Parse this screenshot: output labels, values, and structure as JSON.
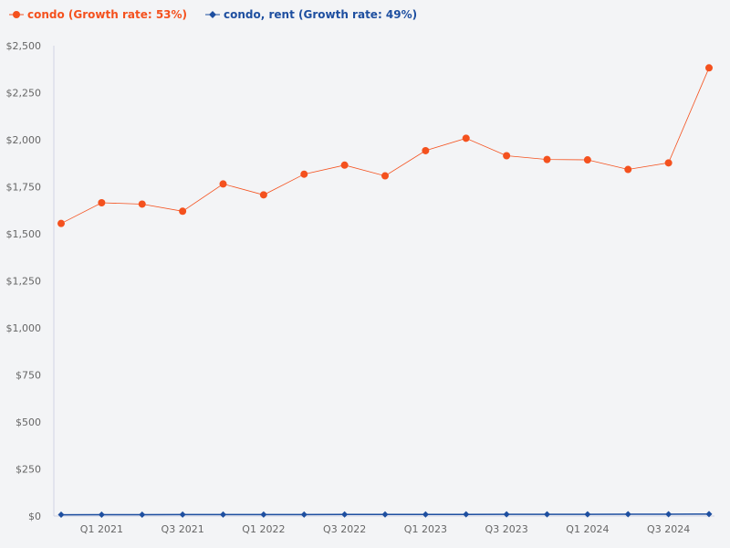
{
  "legend": [
    {
      "label": "condo (Growth rate: 53%)",
      "color": "#f4511e",
      "marker": "circle"
    },
    {
      "label": "condo, rent (Growth rate: 49%)",
      "color": "#1e4fa0",
      "marker": "diamond"
    }
  ],
  "chart_data": {
    "type": "line",
    "title": "",
    "xlabel": "",
    "ylabel": "",
    "x": [
      "Q4 2020",
      "Q1 2021",
      "Q2 2021",
      "Q3 2021",
      "Q4 2021",
      "Q1 2022",
      "Q2 2022",
      "Q3 2022",
      "Q4 2022",
      "Q1 2023",
      "Q2 2023",
      "Q3 2023",
      "Q4 2023",
      "Q1 2024",
      "Q2 2024",
      "Q3 2024",
      "Q4 2024"
    ],
    "x_tick_labels": [
      "Q1 2021",
      "Q3 2021",
      "Q1 2022",
      "Q3 2022",
      "Q1 2023",
      "Q3 2023",
      "Q1 2024",
      "Q3 2024"
    ],
    "ylim": [
      0,
      2500
    ],
    "y_ticks": [
      0,
      250,
      500,
      750,
      1000,
      1250,
      1500,
      1750,
      2000,
      2250,
      2500
    ],
    "y_tick_labels": [
      "$0",
      "$250",
      "$500",
      "$750",
      "$1,000",
      "$1,250",
      "$1,500",
      "$1,750",
      "$2,000",
      "$2,250",
      "$2,500"
    ],
    "grid": false,
    "legend_position": "top-left",
    "series": [
      {
        "name": "condo (Growth rate: 53%)",
        "color": "#f4511e",
        "marker": "circle",
        "values": [
          1555,
          1665,
          1658,
          1620,
          1765,
          1707,
          1817,
          1865,
          1808,
          1942,
          2008,
          1915,
          1895,
          1893,
          1842,
          1877,
          2382
        ]
      },
      {
        "name": "condo, rent (Growth rate: 49%)",
        "color": "#1e4fa0",
        "marker": "diamond",
        "values": [
          7,
          7.5,
          7.5,
          7.6,
          7.8,
          7.9,
          8,
          8.2,
          8.4,
          8.6,
          8.8,
          9,
          9.2,
          9.4,
          9.6,
          9.8,
          10.4
        ]
      }
    ]
  }
}
